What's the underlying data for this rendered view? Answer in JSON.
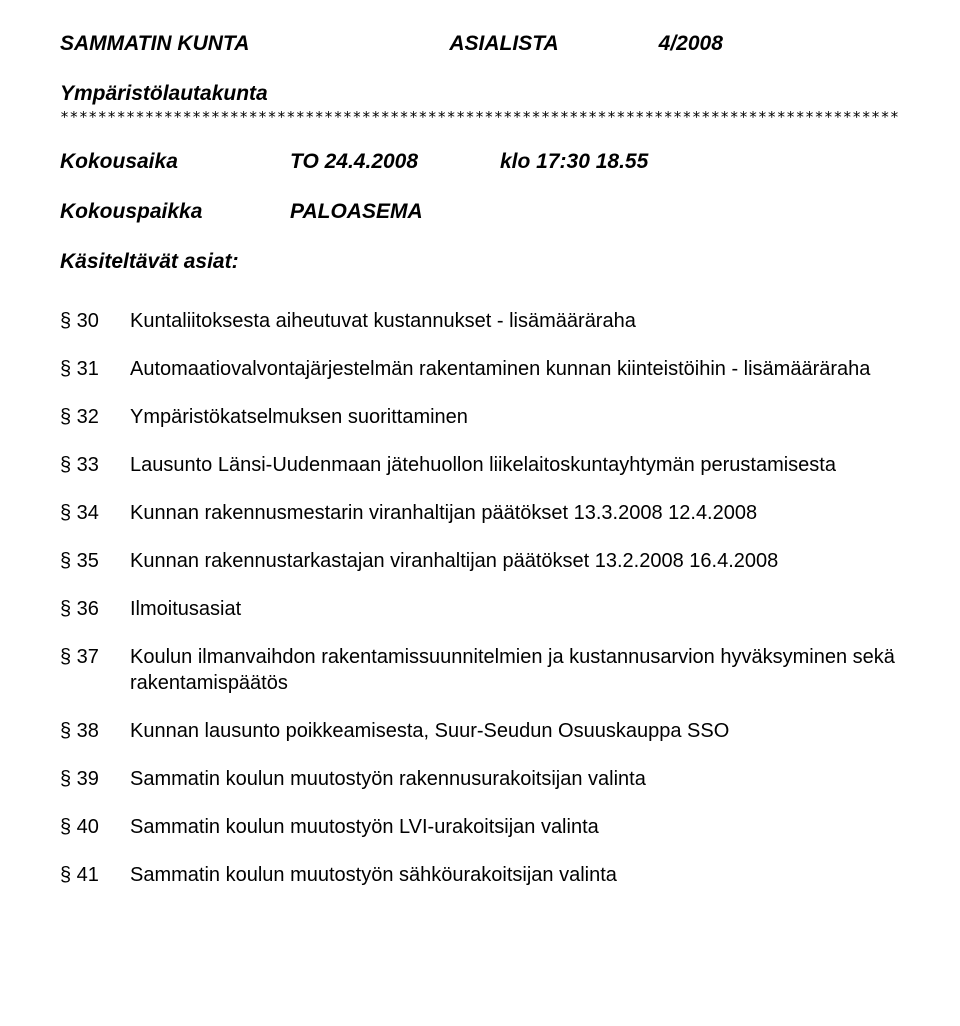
{
  "header": {
    "org": "SAMMATIN KUNTA",
    "docType": "ASIALISTA",
    "docNumber": "4/2008"
  },
  "subtitle": "Ympäristölautakunta",
  "separator": "*******************************************************************************************",
  "meeting": {
    "timeLabel": "Kokousaika",
    "date": "TO 24.4.2008",
    "time": "klo 17:30 18.55",
    "placeLabel": "Kokouspaikka",
    "place": "PALOASEMA"
  },
  "itemsTitle": "Käsiteltävät asiat:",
  "items": [
    {
      "num": "§ 30",
      "text": "Kuntaliitoksesta aiheutuvat kustannukset - lisämääräraha"
    },
    {
      "num": "§ 31",
      "text": "Automaatiovalvontajärjestelmän rakentaminen kunnan kiinteistöihin - lisämääräraha"
    },
    {
      "num": "§ 32",
      "text": "Ympäristökatselmuksen suorittaminen"
    },
    {
      "num": "§ 33",
      "text": "Lausunto Länsi-Uudenmaan jätehuollon liikelaitoskuntayhtymän perustamisesta"
    },
    {
      "num": "§ 34",
      "text": "Kunnan rakennusmestarin viranhaltijan päätökset 13.3.2008 12.4.2008"
    },
    {
      "num": "§ 35",
      "text": "Kunnan rakennustarkastajan viranhaltijan päätökset 13.2.2008 16.4.2008"
    },
    {
      "num": "§ 36",
      "text": "Ilmoitusasiat"
    },
    {
      "num": "§ 37",
      "text": "Koulun ilmanvaihdon rakentamissuunnitelmien ja kustannusarvion hyväksyminen sekä rakentamispäätös"
    },
    {
      "num": "§ 38",
      "text": "Kunnan lausunto poikkeamisesta, Suur-Seudun Osuuskauppa SSO"
    },
    {
      "num": "§ 39",
      "text": "Sammatin koulun muutostyön rakennusurakoitsijan valinta"
    },
    {
      "num": "§ 40",
      "text": "Sammatin koulun muutostyön LVI-urakoitsijan valinta"
    },
    {
      "num": "§ 41",
      "text": "Sammatin koulun muutostyön sähköurakoitsijan valinta"
    }
  ]
}
